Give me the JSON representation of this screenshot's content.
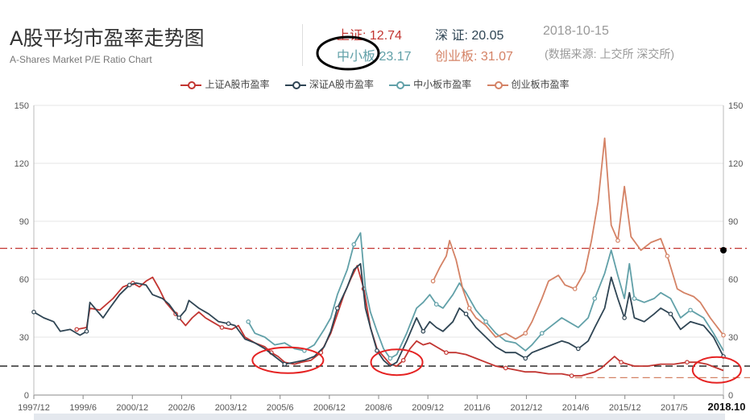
{
  "header": {
    "title": "A股平均市盈率走势图",
    "subtitle": "A-Shares Market P/E Ratio Chart",
    "indices": [
      {
        "label": "上证:",
        "value": "12.74",
        "color": "#c23531"
      },
      {
        "label": "深 证:",
        "value": "20.05",
        "color": "#2f4554"
      },
      {
        "label": "中小板",
        "value": "23.17",
        "color": "#61a0a8"
      },
      {
        "label": "创业板:",
        "value": "31.07",
        "color": "#d48265"
      }
    ],
    "date": "2018-10-15",
    "source": "(数据来源: 上交所 深交所)"
  },
  "chart_data": {
    "type": "line",
    "x_tick_labels": [
      "1997/12",
      "1999/6",
      "2000/12",
      "2002/6",
      "2003/12",
      "2005/6",
      "2006/12",
      "2008/6",
      "2009/12",
      "2011/6",
      "2012/12",
      "2014/6",
      "2015/12",
      "2017/5",
      "2018.10"
    ],
    "y_ticks": [
      0,
      30,
      60,
      90,
      120,
      150
    ],
    "ylim": [
      0,
      150
    ],
    "xlim": [
      1997.9,
      2018.8
    ],
    "legend_position": "top-center",
    "grid": true,
    "series": [
      {
        "name": "上证A股市盈率",
        "color": "#c23531",
        "points": [
          [
            1999.2,
            34
          ],
          [
            1999.5,
            35
          ],
          [
            1999.6,
            45
          ],
          [
            1999.9,
            44
          ],
          [
            2000.3,
            50
          ],
          [
            2000.6,
            56
          ],
          [
            2000.9,
            58
          ],
          [
            2001.1,
            56
          ],
          [
            2001.3,
            59
          ],
          [
            2001.5,
            61
          ],
          [
            2001.7,
            55
          ],
          [
            2001.9,
            48
          ],
          [
            2002.2,
            42
          ],
          [
            2002.5,
            36
          ],
          [
            2002.7,
            40
          ],
          [
            2002.9,
            43
          ],
          [
            2003.1,
            40
          ],
          [
            2003.3,
            38
          ],
          [
            2003.6,
            35
          ],
          [
            2003.9,
            34
          ],
          [
            2004.1,
            36
          ],
          [
            2004.3,
            30
          ],
          [
            2004.6,
            27
          ],
          [
            2004.9,
            25
          ],
          [
            2005.1,
            22
          ],
          [
            2005.3,
            20
          ],
          [
            2005.5,
            17
          ],
          [
            2005.8,
            16
          ],
          [
            2006.0,
            17
          ],
          [
            2006.3,
            18
          ],
          [
            2006.6,
            22
          ],
          [
            2006.9,
            32
          ],
          [
            2007.1,
            42
          ],
          [
            2007.3,
            52
          ],
          [
            2007.5,
            60
          ],
          [
            2007.7,
            67
          ],
          [
            2007.9,
            55
          ],
          [
            2008.1,
            35
          ],
          [
            2008.3,
            24
          ],
          [
            2008.5,
            20
          ],
          [
            2008.7,
            16
          ],
          [
            2008.9,
            15
          ],
          [
            2009.1,
            18
          ],
          [
            2009.3,
            24
          ],
          [
            2009.5,
            28
          ],
          [
            2009.7,
            26
          ],
          [
            2009.9,
            27
          ],
          [
            2010.1,
            25
          ],
          [
            2010.4,
            22
          ],
          [
            2010.7,
            22
          ],
          [
            2011.0,
            21
          ],
          [
            2011.3,
            19
          ],
          [
            2011.6,
            17
          ],
          [
            2011.9,
            15
          ],
          [
            2012.2,
            14
          ],
          [
            2012.5,
            13
          ],
          [
            2012.8,
            12
          ],
          [
            2013.1,
            12
          ],
          [
            2013.5,
            11
          ],
          [
            2013.9,
            11
          ],
          [
            2014.2,
            10
          ],
          [
            2014.5,
            10
          ],
          [
            2014.9,
            12
          ],
          [
            2015.1,
            14
          ],
          [
            2015.3,
            17
          ],
          [
            2015.5,
            20
          ],
          [
            2015.7,
            17
          ],
          [
            2015.9,
            16
          ],
          [
            2016.1,
            15
          ],
          [
            2016.5,
            15
          ],
          [
            2016.9,
            16
          ],
          [
            2017.3,
            16
          ],
          [
            2017.7,
            17
          ],
          [
            2018.0,
            17
          ],
          [
            2018.3,
            16
          ],
          [
            2018.6,
            14
          ],
          [
            2018.8,
            12.7
          ]
        ]
      },
      {
        "name": "深证A股市盈率",
        "color": "#2f4554",
        "points": [
          [
            1997.9,
            43
          ],
          [
            1998.2,
            40
          ],
          [
            1998.5,
            38
          ],
          [
            1998.7,
            33
          ],
          [
            1999.0,
            34
          ],
          [
            1999.3,
            31
          ],
          [
            1999.5,
            33
          ],
          [
            1999.6,
            48
          ],
          [
            1999.8,
            44
          ],
          [
            2000.0,
            40
          ],
          [
            2000.2,
            45
          ],
          [
            2000.5,
            52
          ],
          [
            2000.8,
            57
          ],
          [
            2001.0,
            58
          ],
          [
            2001.3,
            57
          ],
          [
            2001.5,
            52
          ],
          [
            2001.8,
            50
          ],
          [
            2002.0,
            47
          ],
          [
            2002.3,
            40
          ],
          [
            2002.5,
            44
          ],
          [
            2002.6,
            49
          ],
          [
            2002.9,
            45
          ],
          [
            2003.2,
            42
          ],
          [
            2003.5,
            38
          ],
          [
            2003.8,
            37
          ],
          [
            2004.0,
            36
          ],
          [
            2004.3,
            29
          ],
          [
            2004.6,
            27
          ],
          [
            2004.9,
            24
          ],
          [
            2005.2,
            20
          ],
          [
            2005.5,
            16
          ],
          [
            2005.8,
            17
          ],
          [
            2006.1,
            18
          ],
          [
            2006.4,
            20
          ],
          [
            2006.7,
            25
          ],
          [
            2006.9,
            33
          ],
          [
            2007.1,
            45
          ],
          [
            2007.4,
            56
          ],
          [
            2007.6,
            65
          ],
          [
            2007.8,
            68
          ],
          [
            2007.95,
            45
          ],
          [
            2008.1,
            35
          ],
          [
            2008.3,
            23
          ],
          [
            2008.5,
            18
          ],
          [
            2008.7,
            15
          ],
          [
            2008.9,
            17
          ],
          [
            2009.2,
            28
          ],
          [
            2009.5,
            40
          ],
          [
            2009.7,
            33
          ],
          [
            2009.9,
            38
          ],
          [
            2010.1,
            35
          ],
          [
            2010.3,
            33
          ],
          [
            2010.6,
            38
          ],
          [
            2010.8,
            45
          ],
          [
            2011.0,
            42
          ],
          [
            2011.3,
            35
          ],
          [
            2011.6,
            30
          ],
          [
            2011.9,
            25
          ],
          [
            2012.2,
            22
          ],
          [
            2012.5,
            22
          ],
          [
            2012.8,
            19
          ],
          [
            2013.0,
            22
          ],
          [
            2013.3,
            24
          ],
          [
            2013.6,
            26
          ],
          [
            2013.9,
            28
          ],
          [
            2014.1,
            27
          ],
          [
            2014.4,
            24
          ],
          [
            2014.7,
            28
          ],
          [
            2014.9,
            35
          ],
          [
            2015.2,
            45
          ],
          [
            2015.4,
            61
          ],
          [
            2015.6,
            50
          ],
          [
            2015.8,
            40
          ],
          [
            2015.95,
            53
          ],
          [
            2016.1,
            40
          ],
          [
            2016.4,
            38
          ],
          [
            2016.7,
            42
          ],
          [
            2016.9,
            45
          ],
          [
            2017.2,
            42
          ],
          [
            2017.5,
            34
          ],
          [
            2017.8,
            38
          ],
          [
            2018.0,
            37
          ],
          [
            2018.2,
            36
          ],
          [
            2018.5,
            30
          ],
          [
            2018.8,
            20
          ]
        ]
      },
      {
        "name": "中小板市盈率",
        "color": "#61a0a8",
        "points": [
          [
            2004.4,
            38
          ],
          [
            2004.6,
            32
          ],
          [
            2004.9,
            30
          ],
          [
            2005.2,
            26
          ],
          [
            2005.5,
            27
          ],
          [
            2005.8,
            24
          ],
          [
            2006.1,
            23
          ],
          [
            2006.4,
            26
          ],
          [
            2006.7,
            34
          ],
          [
            2006.9,
            40
          ],
          [
            2007.1,
            52
          ],
          [
            2007.4,
            65
          ],
          [
            2007.6,
            78
          ],
          [
            2007.8,
            84
          ],
          [
            2007.95,
            55
          ],
          [
            2008.1,
            43
          ],
          [
            2008.3,
            33
          ],
          [
            2008.5,
            24
          ],
          [
            2008.7,
            19
          ],
          [
            2008.9,
            21
          ],
          [
            2009.2,
            32
          ],
          [
            2009.5,
            45
          ],
          [
            2009.7,
            48
          ],
          [
            2009.9,
            52
          ],
          [
            2010.1,
            47
          ],
          [
            2010.3,
            45
          ],
          [
            2010.6,
            52
          ],
          [
            2010.8,
            58
          ],
          [
            2011.0,
            53
          ],
          [
            2011.3,
            44
          ],
          [
            2011.6,
            38
          ],
          [
            2011.9,
            32
          ],
          [
            2012.2,
            28
          ],
          [
            2012.5,
            27
          ],
          [
            2012.8,
            23
          ],
          [
            2013.0,
            26
          ],
          [
            2013.3,
            32
          ],
          [
            2013.6,
            36
          ],
          [
            2013.9,
            40
          ],
          [
            2014.1,
            38
          ],
          [
            2014.4,
            35
          ],
          [
            2014.7,
            40
          ],
          [
            2014.9,
            50
          ],
          [
            2015.2,
            63
          ],
          [
            2015.4,
            75
          ],
          [
            2015.6,
            62
          ],
          [
            2015.8,
            50
          ],
          [
            2015.95,
            68
          ],
          [
            2016.1,
            50
          ],
          [
            2016.4,
            48
          ],
          [
            2016.7,
            50
          ],
          [
            2016.9,
            53
          ],
          [
            2017.2,
            50
          ],
          [
            2017.5,
            40
          ],
          [
            2017.8,
            44
          ],
          [
            2018.0,
            42
          ],
          [
            2018.2,
            40
          ],
          [
            2018.5,
            32
          ],
          [
            2018.8,
            23
          ]
        ]
      },
      {
        "name": "创业板市盈率",
        "color": "#d48265",
        "points": [
          [
            2010.0,
            59
          ],
          [
            2010.2,
            66
          ],
          [
            2010.4,
            72
          ],
          [
            2010.5,
            80
          ],
          [
            2010.7,
            70
          ],
          [
            2010.9,
            55
          ],
          [
            2011.1,
            45
          ],
          [
            2011.3,
            40
          ],
          [
            2011.6,
            36
          ],
          [
            2011.9,
            30
          ],
          [
            2012.2,
            32
          ],
          [
            2012.5,
            29
          ],
          [
            2012.8,
            32
          ],
          [
            2013.0,
            38
          ],
          [
            2013.3,
            50
          ],
          [
            2013.5,
            59
          ],
          [
            2013.8,
            62
          ],
          [
            2014.0,
            57
          ],
          [
            2014.3,
            55
          ],
          [
            2014.6,
            64
          ],
          [
            2014.8,
            80
          ],
          [
            2015.0,
            100
          ],
          [
            2015.2,
            133
          ],
          [
            2015.4,
            88
          ],
          [
            2015.6,
            80
          ],
          [
            2015.8,
            108
          ],
          [
            2016.0,
            82
          ],
          [
            2016.3,
            75
          ],
          [
            2016.6,
            79
          ],
          [
            2016.9,
            81
          ],
          [
            2017.1,
            72
          ],
          [
            2017.4,
            55
          ],
          [
            2017.6,
            53
          ],
          [
            2017.9,
            51
          ],
          [
            2018.1,
            48
          ],
          [
            2018.4,
            40
          ],
          [
            2018.8,
            31
          ]
        ]
      }
    ],
    "reference_lines": [
      {
        "y": 76,
        "color": "#c23531",
        "style": "dash-dot"
      },
      {
        "y": 15,
        "color": "#000000",
        "style": "dash"
      },
      {
        "y": 9,
        "color": "#d48265",
        "style": "dash",
        "x_start": 2014.3
      }
    ],
    "annotations": [
      {
        "type": "ellipse",
        "color": "#e52222",
        "cx": 2005.6,
        "cy": 18
      },
      {
        "type": "ellipse",
        "color": "#e52222",
        "cx": 2008.9,
        "cy": 17
      },
      {
        "type": "ellipse",
        "color": "#e52222",
        "cx": 2018.6,
        "cy": 13
      },
      {
        "type": "ellipse",
        "color": "#000000",
        "target": "中小板"
      },
      {
        "type": "dot",
        "color": "#000000",
        "x": 2018.8,
        "y": 75
      }
    ]
  }
}
